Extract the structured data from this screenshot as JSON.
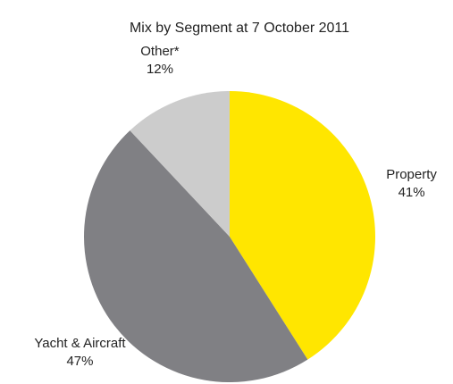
{
  "chart_data": {
    "type": "pie",
    "title": "Mix by Segment at 7 October 2011",
    "categories": [
      "Property",
      "Yacht & Aircraft",
      "Other*"
    ],
    "values": [
      41,
      47,
      12
    ],
    "value_labels": [
      "41%",
      "47%",
      "12%"
    ],
    "colors": [
      "#ffe600",
      "#808084",
      "#cccccc"
    ]
  }
}
